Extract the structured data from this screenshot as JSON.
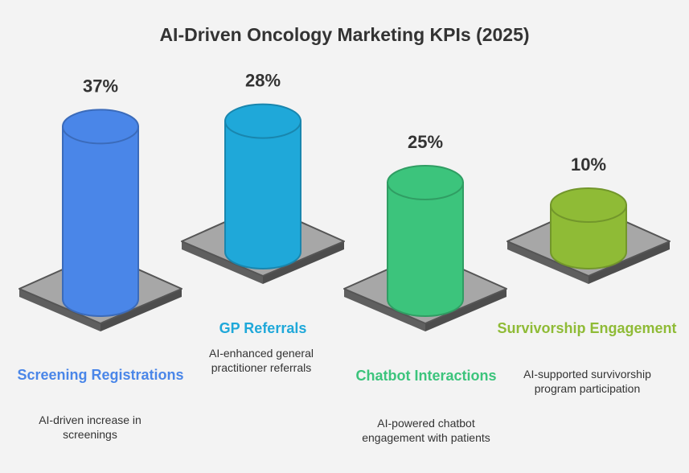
{
  "title": "AI-Driven Oncology Marketing KPIs (2025)",
  "chart_data": {
    "type": "bar",
    "title": "AI-Driven Oncology Marketing KPIs (2025)",
    "categories": [
      "Screening Registrations",
      "GP Referrals",
      "Chatbot Interactions",
      "Survivorship Engagement"
    ],
    "values": [
      37,
      28,
      25,
      10
    ],
    "value_labels": [
      "37%",
      "28%",
      "25%",
      "10%"
    ],
    "descriptions": [
      "AI-driven increase in screenings",
      "AI-enhanced general practitioner referrals",
      "AI-powered chatbot engagement with patients",
      "AI-supported survivorship program participation"
    ],
    "colors": [
      "#4a86e8",
      "#1fa8d9",
      "#3cc47c",
      "#8fbb36"
    ],
    "grid": false,
    "legend": "none"
  },
  "items": [
    {
      "label": "Screening Registrations",
      "description": "AI-driven increase in screenings"
    },
    {
      "label": "GP Referrals",
      "description": "AI-enhanced general practitioner referrals"
    },
    {
      "label": "Chatbot Interactions",
      "description": "AI-powered chatbot engagement with patients"
    },
    {
      "label": "Survivorship Engagement",
      "description": "AI-supported survivorship program participation"
    }
  ]
}
